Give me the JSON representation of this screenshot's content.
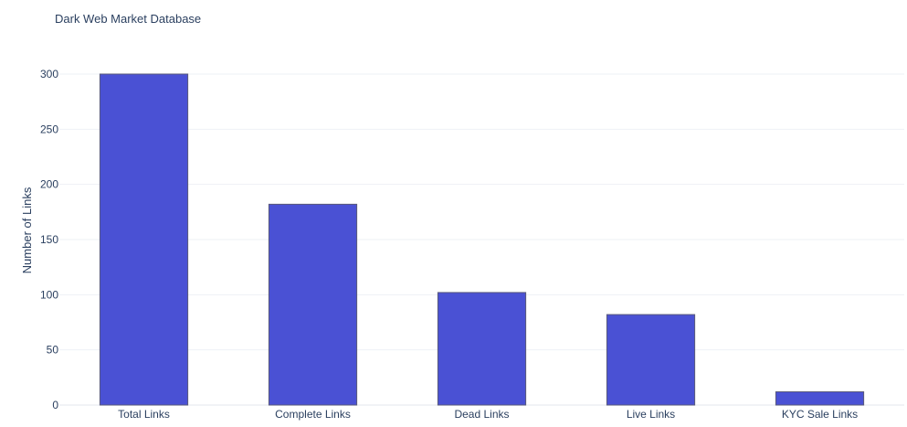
{
  "chart_data": {
    "type": "bar",
    "title": "Dark Web Market Database",
    "xlabel": "",
    "ylabel": "Number of Links",
    "categories": [
      "Total Links",
      "Complete Links",
      "Dead Links",
      "Live Links",
      "KYC Sale Links"
    ],
    "values": [
      300,
      182,
      102,
      82,
      12
    ],
    "ylim": [
      0,
      315
    ],
    "yticks": [
      0,
      50,
      100,
      150,
      200,
      250,
      300
    ],
    "grid": true,
    "bar_color": "#4a51d4"
  }
}
